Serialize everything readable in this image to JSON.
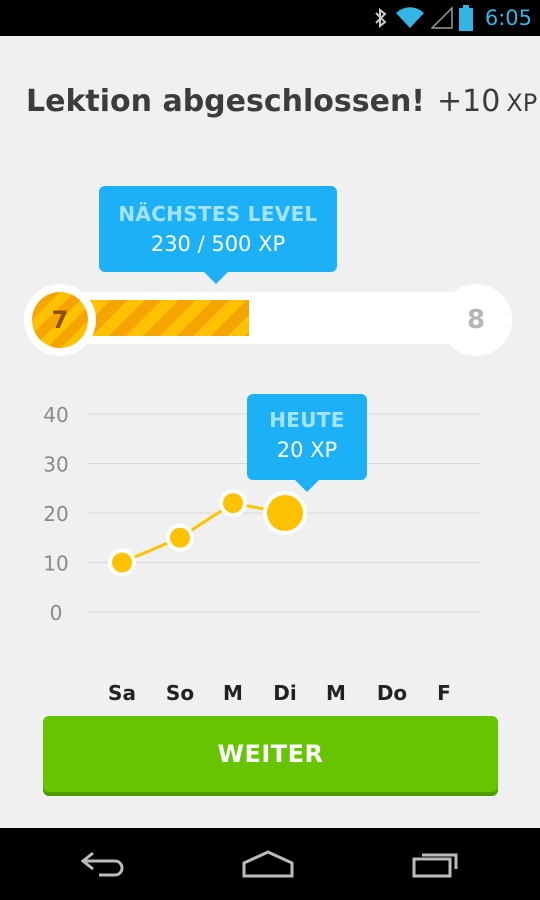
{
  "status_bar": {
    "time": "6:05",
    "icons": [
      "bluetooth-icon",
      "wifi-icon",
      "signal-icon",
      "battery-icon"
    ],
    "time_color": "#33b5e5"
  },
  "header": {
    "title": "Lektion abgeschlossen!",
    "xp_gain": "+10",
    "xp_unit": "XP"
  },
  "level": {
    "tooltip_heading": "NÄCHSTES LEVEL",
    "tooltip_value": "230 / 500 XP",
    "current": "7",
    "next": "8",
    "progress_xp": 230,
    "goal_xp": 500
  },
  "today_tooltip": {
    "heading": "HEUTE",
    "value": "20 XP"
  },
  "chart_data": {
    "type": "line",
    "categories": [
      "Sa",
      "So",
      "M",
      "Di",
      "M",
      "Do",
      "F"
    ],
    "series": [
      {
        "values": [
          10,
          15,
          22,
          20,
          null,
          null,
          null
        ]
      }
    ],
    "y_ticks": [
      "40",
      "30",
      "20",
      "10",
      "0"
    ],
    "ylim": [
      0,
      40
    ],
    "grid": true,
    "highlight_index": 3,
    "colors": {
      "line": "#ffc200",
      "grid": "#d8d8d8",
      "tick": "#8a8a8a"
    }
  },
  "continue_button": {
    "label": "WEITER"
  },
  "colors": {
    "accent_blue": "#1cb0f6",
    "accent_green": "#66c400",
    "accent_gold": "#ffc200"
  },
  "nav_bar": {
    "icons": [
      "back-icon",
      "home-icon",
      "recent-apps-icon"
    ]
  }
}
